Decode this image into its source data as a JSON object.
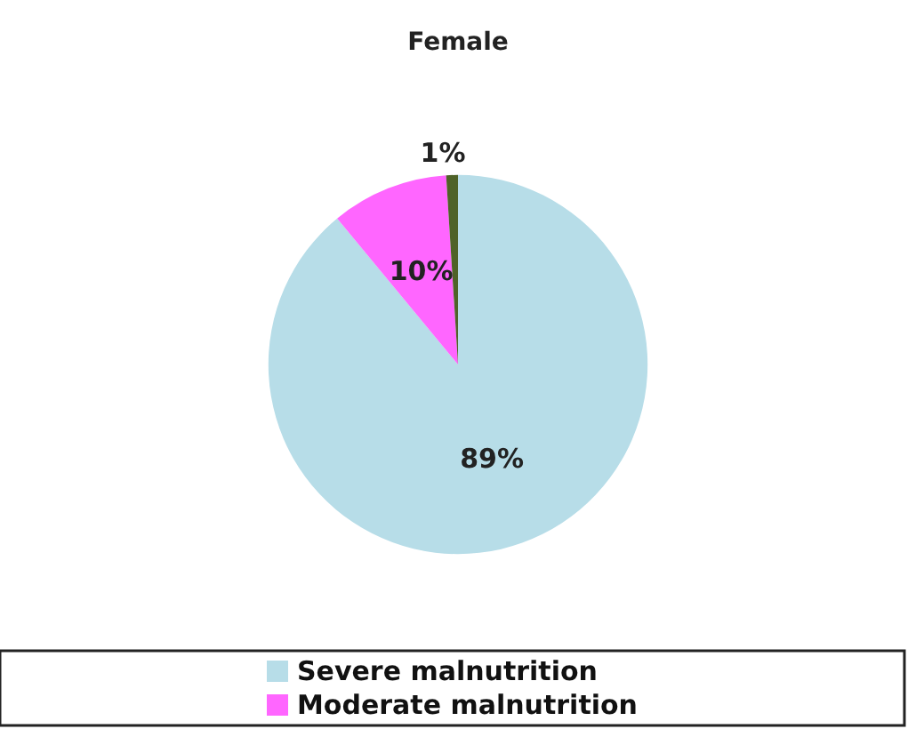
{
  "chart_data": {
    "type": "pie",
    "title": "Female",
    "categories": [
      "Severe malnutrition",
      "Moderate malnutrition",
      null
    ],
    "values": [
      89,
      10,
      1
    ],
    "colors": [
      "#b7dde8",
      "#ff66ff",
      "#4f6228"
    ],
    "value_labels": [
      "89%",
      "10%",
      "1%"
    ],
    "legend": "bottom"
  }
}
